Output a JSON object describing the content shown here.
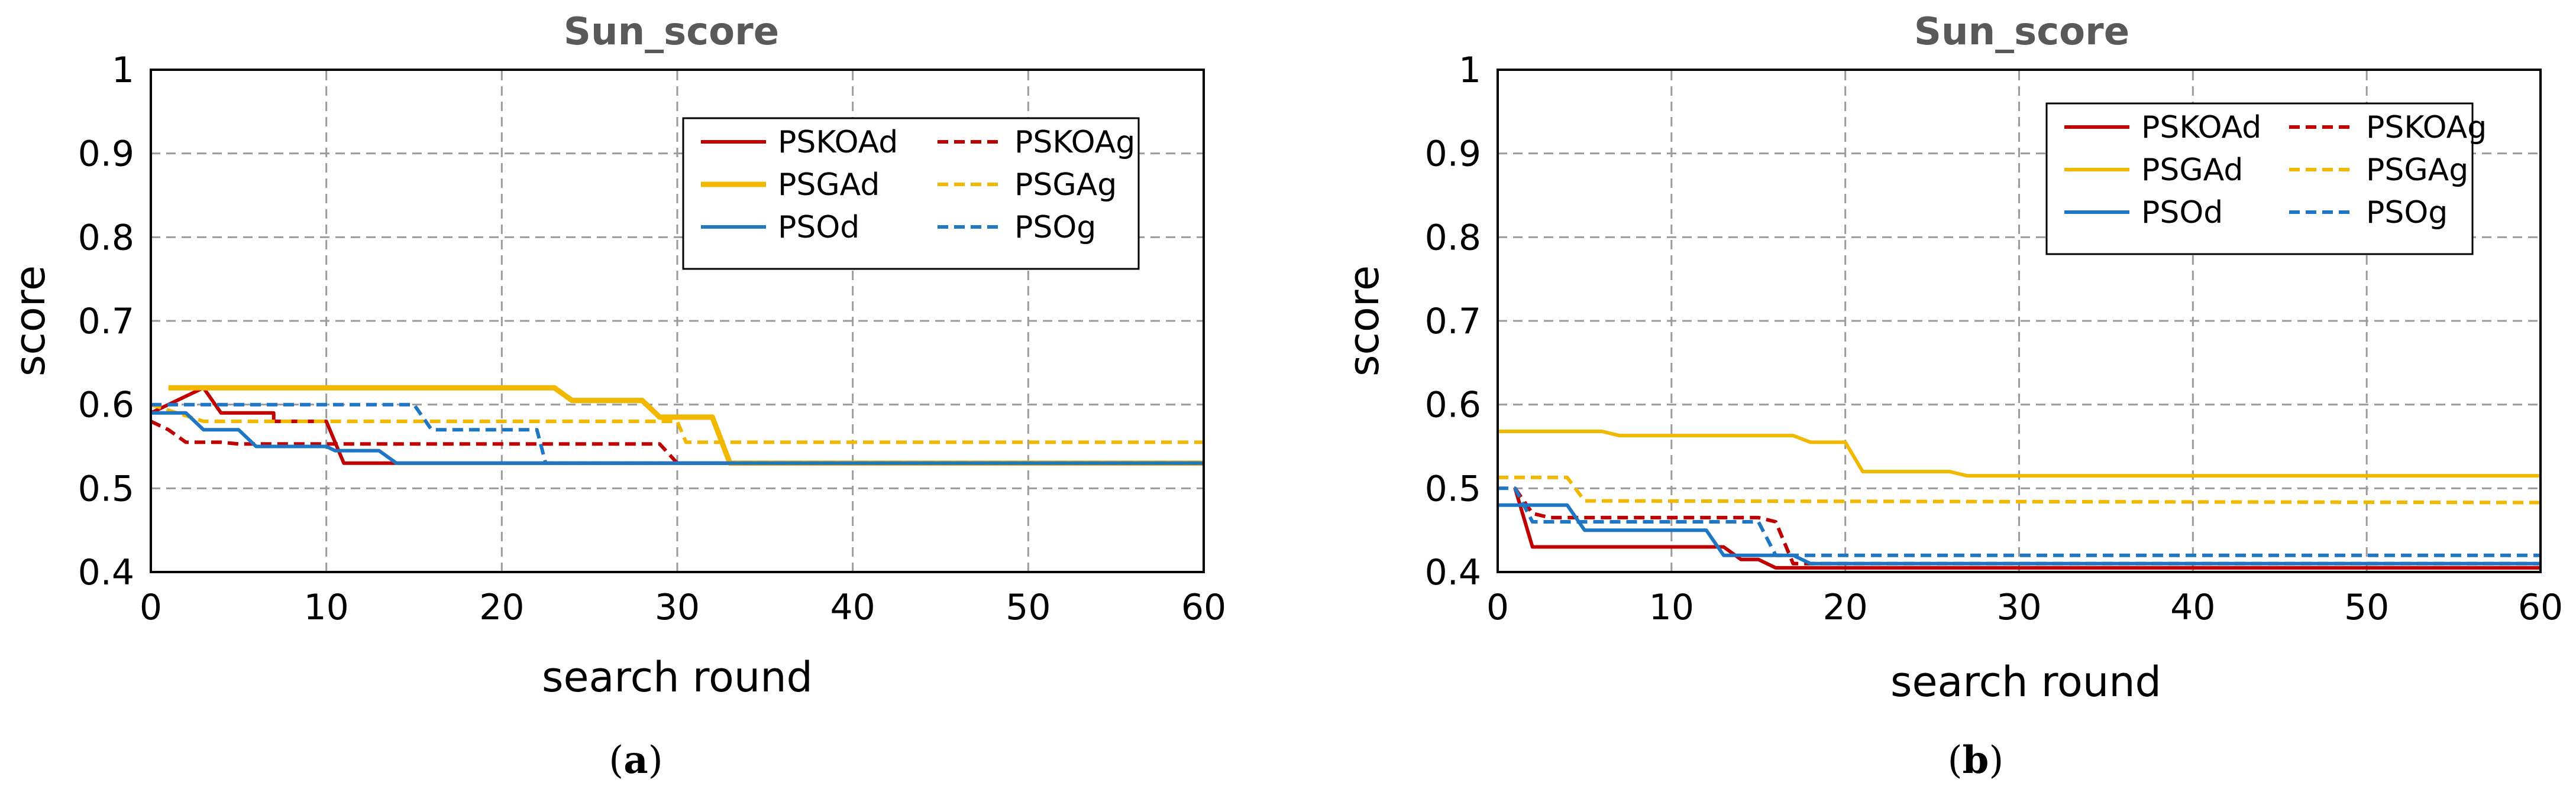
{
  "chart_data": [
    {
      "type": "line",
      "title": "Sun_score",
      "xlabel": "search round",
      "ylabel": "score",
      "xlim": [
        0,
        60
      ],
      "ylim": [
        0.4,
        1
      ],
      "xticks": [
        0,
        10,
        20,
        30,
        40,
        50,
        60
      ],
      "yticks": [
        0.4,
        0.5,
        0.6,
        0.7,
        0.8,
        0.9,
        1
      ],
      "grid": true,
      "legend_position": "top-right",
      "caption_letter": "a",
      "series": [
        {
          "name": "PSKOAd",
          "color": "#c00000",
          "style": "solid",
          "width": "normal",
          "points": [
            [
              0,
              0.59
            ],
            [
              3,
              0.62
            ],
            [
              4,
              0.59
            ],
            [
              7,
              0.59
            ],
            [
              7,
              0.58
            ],
            [
              10,
              0.58
            ],
            [
              11,
              0.53
            ],
            [
              60,
              0.53
            ]
          ]
        },
        {
          "name": "PSKOAg",
          "color": "#c00000",
          "style": "dashed",
          "width": "normal",
          "points": [
            [
              0,
              0.58
            ],
            [
              1,
              0.57
            ],
            [
              2,
              0.555
            ],
            [
              4,
              0.555
            ],
            [
              5,
              0.553
            ],
            [
              29,
              0.553
            ],
            [
              30,
              0.53
            ],
            [
              60,
              0.53
            ]
          ]
        },
        {
          "name": "PSGAd",
          "color": "#f2b800",
          "style": "solid",
          "width": "thick",
          "points": [
            [
              1,
              0.62
            ],
            [
              23,
              0.62
            ],
            [
              24,
              0.605
            ],
            [
              28,
              0.605
            ],
            [
              29,
              0.585
            ],
            [
              32,
              0.585
            ],
            [
              33,
              0.53
            ],
            [
              60,
              0.53
            ]
          ]
        },
        {
          "name": "PSGAg",
          "color": "#f2b800",
          "style": "dashed",
          "width": "normal",
          "points": [
            [
              0,
              0.6
            ],
            [
              3,
              0.58
            ],
            [
              30,
              0.58
            ],
            [
              30.5,
              0.555
            ],
            [
              60,
              0.555
            ]
          ]
        },
        {
          "name": "PSOd",
          "color": "#1f77c4",
          "style": "solid",
          "width": "normal",
          "points": [
            [
              0,
              0.59
            ],
            [
              2,
              0.59
            ],
            [
              3,
              0.57
            ],
            [
              5,
              0.57
            ],
            [
              6,
              0.55
            ],
            [
              10,
              0.55
            ],
            [
              10.5,
              0.545
            ],
            [
              13,
              0.545
            ],
            [
              14,
              0.53
            ],
            [
              60,
              0.53
            ]
          ]
        },
        {
          "name": "PSOg",
          "color": "#1f77c4",
          "style": "dashed",
          "width": "normal",
          "points": [
            [
              0,
              0.6
            ],
            [
              15,
              0.6
            ],
            [
              16,
              0.57
            ],
            [
              22,
              0.57
            ],
            [
              22.5,
              0.53
            ],
            [
              60,
              0.53
            ]
          ]
        }
      ]
    },
    {
      "type": "line",
      "title": "Sun_score",
      "xlabel": "search round",
      "ylabel": "score",
      "xlim": [
        0,
        60
      ],
      "ylim": [
        0.4,
        1
      ],
      "xticks": [
        0,
        10,
        20,
        30,
        40,
        50,
        60
      ],
      "yticks": [
        0.4,
        0.5,
        0.6,
        0.7,
        0.8,
        0.9,
        1
      ],
      "grid": true,
      "legend_position": "top-right",
      "caption_letter": "b",
      "series": [
        {
          "name": "PSKOAd",
          "color": "#c00000",
          "style": "solid",
          "width": "normal",
          "points": [
            [
              1,
              0.5
            ],
            [
              2,
              0.43
            ],
            [
              13,
              0.43
            ],
            [
              14,
              0.415
            ],
            [
              15,
              0.415
            ],
            [
              16,
              0.405
            ],
            [
              60,
              0.405
            ]
          ]
        },
        {
          "name": "PSKOAg",
          "color": "#c00000",
          "style": "dashed",
          "width": "normal",
          "points": [
            [
              1,
              0.5
            ],
            [
              2,
              0.47
            ],
            [
              3,
              0.465
            ],
            [
              15,
              0.465
            ],
            [
              16,
              0.46
            ],
            [
              17,
              0.41
            ],
            [
              60,
              0.41
            ]
          ]
        },
        {
          "name": "PSGAd",
          "color": "#f2b800",
          "style": "solid",
          "width": "normal",
          "points": [
            [
              0,
              0.568
            ],
            [
              6,
              0.568
            ],
            [
              7,
              0.563
            ],
            [
              17,
              0.563
            ],
            [
              18,
              0.555
            ],
            [
              20,
              0.555
            ],
            [
              21,
              0.52
            ],
            [
              26,
              0.52
            ],
            [
              27,
              0.515
            ],
            [
              60,
              0.515
            ]
          ]
        },
        {
          "name": "PSGAg",
          "color": "#f2b800",
          "style": "dashed",
          "width": "normal",
          "points": [
            [
              0,
              0.513
            ],
            [
              4,
              0.513
            ],
            [
              5,
              0.485
            ],
            [
              60,
              0.483
            ]
          ]
        },
        {
          "name": "PSOd",
          "color": "#1f77c4",
          "style": "solid",
          "width": "normal",
          "points": [
            [
              0,
              0.48
            ],
            [
              4,
              0.48
            ],
            [
              5,
              0.45
            ],
            [
              12,
              0.45
            ],
            [
              13,
              0.42
            ],
            [
              17,
              0.42
            ],
            [
              18,
              0.41
            ],
            [
              60,
              0.41
            ]
          ]
        },
        {
          "name": "PSOg",
          "color": "#1f77c4",
          "style": "dashed",
          "width": "normal",
          "points": [
            [
              0,
              0.5
            ],
            [
              1,
              0.5
            ],
            [
              2,
              0.46
            ],
            [
              15,
              0.46
            ],
            [
              16,
              0.42
            ],
            [
              60,
              0.42
            ]
          ]
        }
      ]
    }
  ]
}
